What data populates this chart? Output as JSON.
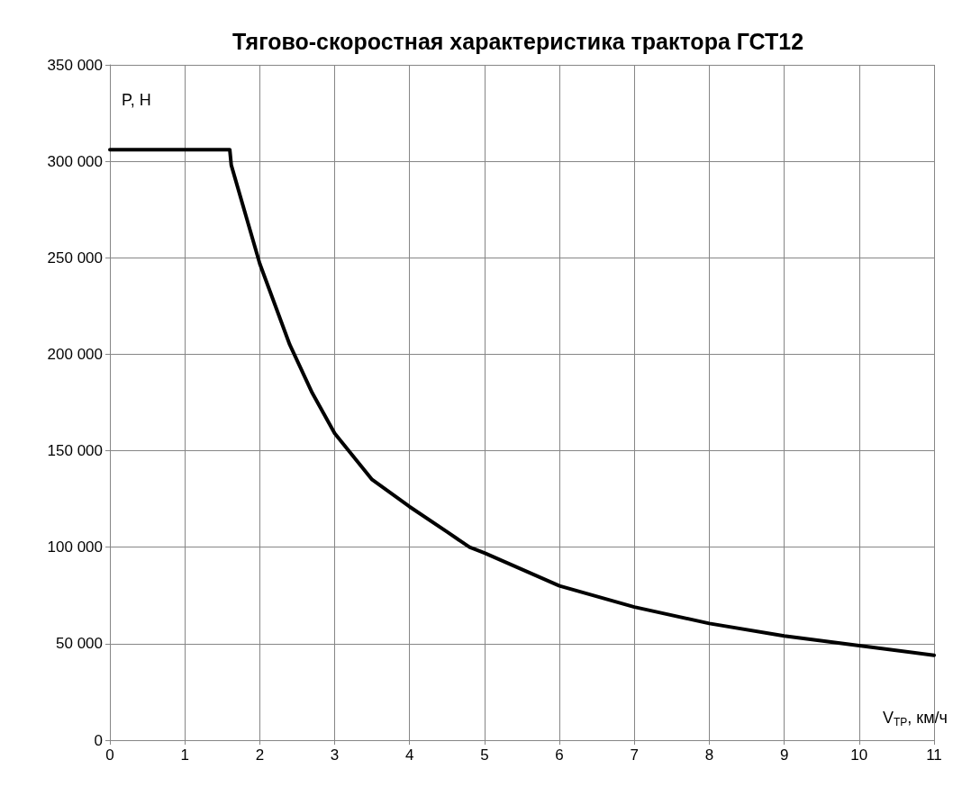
{
  "chart_data": {
    "type": "line",
    "title": "Тягово-скоростная характеристика трактора ГСТ12",
    "xlabel": "V$_{ТР}$, км/ч",
    "ylabel": "P, Н",
    "x": [
      0,
      1.6,
      1.62,
      2,
      2.4,
      2.7,
      3,
      3.5,
      4,
      4.5,
      4.8,
      5,
      6,
      7,
      8,
      9,
      10,
      11
    ],
    "series": [
      {
        "color": "#000000",
        "values": [
          306000,
          306000,
          298000,
          247000,
          205000,
          180000,
          159000,
          135000,
          121000,
          108000,
          100000,
          97000,
          80000,
          69000,
          60500,
          54000,
          49000,
          44000
        ]
      }
    ],
    "xlim": [
      0,
      11
    ],
    "xticks": [
      0,
      1,
      2,
      3,
      4,
      5,
      6,
      7,
      8,
      9,
      10,
      11
    ],
    "ylim": [
      0,
      350000
    ],
    "yticks": [
      0,
      {
        "value": 50000,
        "label": "50 000"
      },
      {
        "value": 100000,
        "label": "100 000"
      },
      {
        "value": 150000,
        "label": "150 000"
      },
      {
        "value": 200000,
        "label": "200 000"
      },
      {
        "value": 250000,
        "label": "250 000"
      },
      {
        "value": 300000,
        "label": "300 000"
      },
      {
        "value": 350000,
        "label": "350 000"
      }
    ],
    "grid": true,
    "marker": "none",
    "line_style": "solid"
  }
}
